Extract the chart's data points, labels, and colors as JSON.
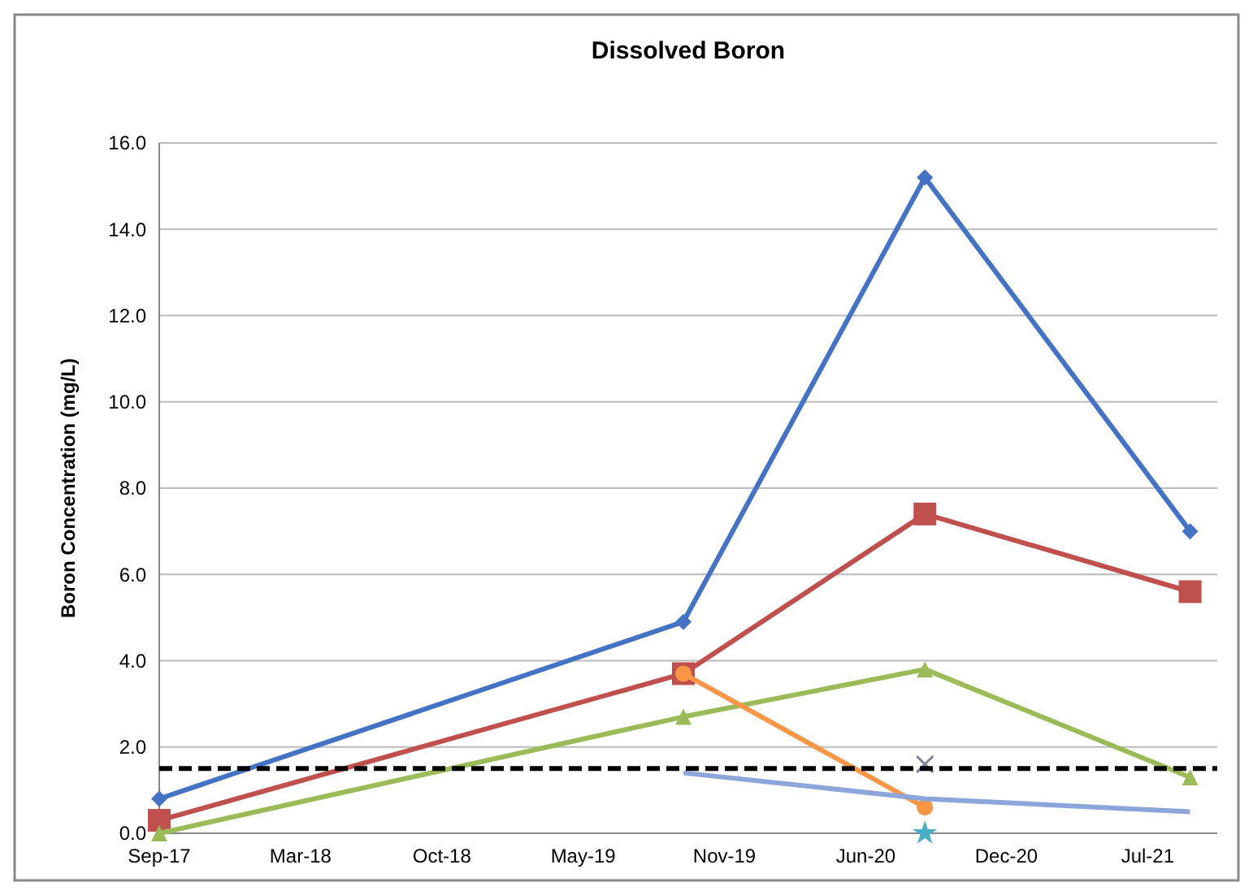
{
  "chart_data": {
    "type": "line",
    "title": "Dissolved Boron",
    "ylabel": "Boron Concentration (mg/L)",
    "xlim": [
      "2017-09-01",
      "2021-10-30"
    ],
    "xticks": [
      {
        "value": "2017-09-01",
        "label": "Sep-17"
      },
      {
        "value": "2018-03-23",
        "label": "Mar-18"
      },
      {
        "value": "2018-10-12",
        "label": "Oct-18"
      },
      {
        "value": "2019-05-03",
        "label": "May-19"
      },
      {
        "value": "2019-11-22",
        "label": "Nov-19"
      },
      {
        "value": "2020-06-12",
        "label": "Jun-20"
      },
      {
        "value": "2020-12-31",
        "label": "Dec-20"
      },
      {
        "value": "2021-07-22",
        "label": "Jul-21"
      }
    ],
    "ylim": [
      0,
      16
    ],
    "yticks": [
      {
        "value": 0,
        "label": "0.0"
      },
      {
        "value": 2,
        "label": "2.0"
      },
      {
        "value": 4,
        "label": "4.0"
      },
      {
        "value": 6,
        "label": "6.0"
      },
      {
        "value": 8,
        "label": "8.0"
      },
      {
        "value": 10,
        "label": "10.0"
      },
      {
        "value": 12,
        "label": "12.0"
      },
      {
        "value": 14,
        "label": "14.0"
      },
      {
        "value": 16,
        "label": "16.0"
      }
    ],
    "grid": "y",
    "series": [
      {
        "color": "#4472c4",
        "marker": "diamond",
        "x": [
          "2017-09-01",
          "2019-09-24",
          "2020-09-05",
          "2021-09-21"
        ],
        "values": [
          0.8,
          4.9,
          15.2,
          7.0
        ]
      },
      {
        "color": "#c0504d",
        "marker": "square",
        "x": [
          "2017-09-01",
          "2019-09-24",
          "2020-09-05",
          "2021-09-21"
        ],
        "values": [
          0.3,
          3.7,
          7.4,
          5.6
        ]
      },
      {
        "color": "#9bbb59",
        "marker": "triangle",
        "x": [
          "2017-09-01",
          "2019-09-24",
          "2020-09-05",
          "2021-09-21"
        ],
        "values": [
          0.0,
          2.7,
          3.8,
          1.3
        ]
      },
      {
        "color": "#f79646",
        "marker": "circle",
        "x": [
          "2019-09-24",
          "2020-09-05"
        ],
        "values": [
          3.7,
          0.6
        ]
      },
      {
        "color": "#8ea5dc",
        "marker": "none",
        "x": [
          "2019-09-24",
          "2020-09-05",
          "2021-09-21"
        ],
        "values": [
          1.4,
          0.8,
          0.5
        ]
      },
      {
        "type": "scatter",
        "color": "#7f7f9f",
        "marker": "cross",
        "x": [
          "2020-09-05"
        ],
        "values": [
          1.6
        ]
      },
      {
        "type": "scatter",
        "color": "#4bacc6",
        "marker": "star",
        "x": [
          "2020-09-05"
        ],
        "values": [
          0.0
        ]
      }
    ],
    "ref_lines": [
      {
        "axis": "y",
        "value": 1.5,
        "color": "#000000",
        "line_style": "dashed"
      }
    ]
  }
}
